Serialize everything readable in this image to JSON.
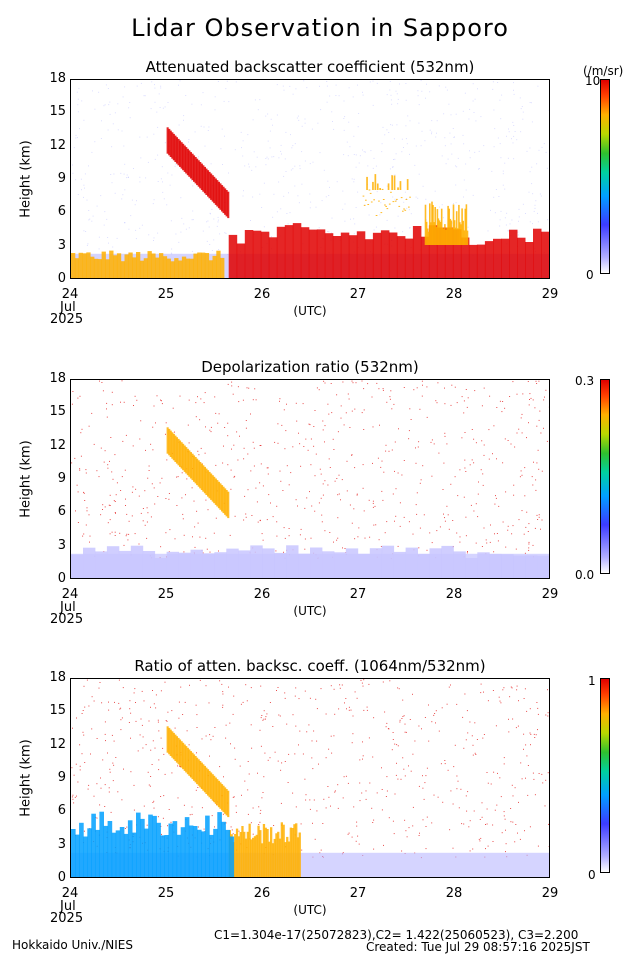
{
  "title": "Lidar Observation in Sapporo",
  "panels": [
    {
      "title": "Attenuated backscatter coefficient (532nm)",
      "ylabel": "Height (km)",
      "yticks": [
        "0",
        "3",
        "6",
        "9",
        "12",
        "15",
        "18"
      ],
      "xticks": [
        "24",
        "25",
        "26",
        "27",
        "28",
        "29"
      ],
      "xsub_month": "Jul",
      "xsub_year": "2025",
      "xunit": "(UTC)",
      "cbar_top": "10",
      "cbar_unit": "(/m/sr)",
      "cbar_bottom": "0",
      "colorscale": [
        "#ffffff",
        "#3c3cff",
        "#00a0ff",
        "#2fc02f",
        "#ffb000",
        "#e00000"
      ]
    },
    {
      "title": "Depolarization ratio (532nm)",
      "ylabel": "Height (km)",
      "yticks": [
        "0",
        "3",
        "6",
        "9",
        "12",
        "15",
        "18"
      ],
      "xticks": [
        "24",
        "25",
        "26",
        "27",
        "28",
        "29"
      ],
      "xsub_month": "Jul",
      "xsub_year": "2025",
      "xunit": "(UTC)",
      "cbar_top": "0.3",
      "cbar_bottom": "0.0",
      "colorscale": [
        "#ffffff",
        "#3c3cff",
        "#00a0ff",
        "#2fc02f",
        "#ffb000",
        "#e00000"
      ]
    },
    {
      "title": "Ratio of atten. backsc. coeff. (1064nm/532nm)",
      "ylabel": "Height (km)",
      "yticks": [
        "0",
        "3",
        "6",
        "9",
        "12",
        "15",
        "18"
      ],
      "xticks": [
        "24",
        "25",
        "26",
        "27",
        "28",
        "29"
      ],
      "xsub_month": "Jul",
      "xsub_year": "2025",
      "xunit": "(UTC)",
      "cbar_top": "1",
      "cbar_bottom": "0",
      "colorscale": [
        "#ffffff",
        "#3c3cff",
        "#00a0ff",
        "#2fc02f",
        "#ffb000",
        "#e00000"
      ]
    }
  ],
  "footer": {
    "institution": "Hokkaido Univ./NIES",
    "constants": "C1=1.304e-17(25072823),C2= 1.422(25060523), C3=2.200",
    "created": "Created: Tue Jul 29 08:57:16 2025JST"
  },
  "chart_data": [
    {
      "type": "heatmap",
      "title": "Attenuated backscatter coefficient (532nm)",
      "xlabel": "(UTC)",
      "ylabel": "Height (km)",
      "xlim_days": [
        24,
        29
      ],
      "ylim": [
        0,
        18
      ],
      "features": [
        {
          "kind": "boundary_layer",
          "x": [
            24,
            25.6
          ],
          "y": [
            0,
            2.5
          ],
          "level": "high"
        },
        {
          "kind": "cloud",
          "x": [
            25.0,
            25.65
          ],
          "y_start": 12.5,
          "y_end": 6.5,
          "level": "very_high"
        },
        {
          "kind": "low_cloud",
          "x": [
            25.65,
            29
          ],
          "y": [
            0,
            5
          ],
          "level": "very_high"
        },
        {
          "kind": "cloud",
          "x": [
            27.05,
            27.55
          ],
          "y": [
            8,
            9.5
          ],
          "level": "high"
        },
        {
          "kind": "cloud",
          "x": [
            27.7,
            28.15
          ],
          "y": [
            3,
            7
          ],
          "level": "high"
        }
      ]
    },
    {
      "type": "heatmap",
      "title": "Depolarization ratio (532nm)",
      "xlabel": "(UTC)",
      "ylabel": "Height (km)",
      "xlim_days": [
        24,
        29
      ],
      "ylim": [
        0,
        18
      ],
      "features": [
        {
          "kind": "noise",
          "x": [
            24,
            29
          ],
          "y": [
            4,
            18
          ],
          "level": "scattered_high"
        },
        {
          "kind": "cloud",
          "x": [
            25.0,
            25.65
          ],
          "y_start": 12.5,
          "y_end": 6.5,
          "level": "high"
        },
        {
          "kind": "aerosol",
          "x": [
            24,
            29
          ],
          "y": [
            0,
            3
          ],
          "level": "low"
        }
      ]
    },
    {
      "type": "heatmap",
      "title": "Ratio of atten. backsc. coeff. (1064nm/532nm)",
      "xlabel": "(UTC)",
      "ylabel": "Height (km)",
      "xlim_days": [
        24,
        29
      ],
      "ylim": [
        0,
        18
      ],
      "features": [
        {
          "kind": "cloud",
          "x": [
            25.0,
            25.65
          ],
          "y_start": 12.5,
          "y_end": 6.5,
          "level": "high"
        },
        {
          "kind": "low_cloud",
          "x": [
            25.65,
            26.4
          ],
          "y": [
            0,
            5
          ],
          "level": "high"
        },
        {
          "kind": "aerosol",
          "x": [
            24,
            25.7
          ],
          "y": [
            0,
            6
          ],
          "level": "medium"
        }
      ]
    }
  ]
}
